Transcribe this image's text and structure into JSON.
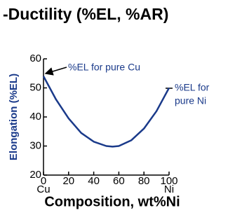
{
  "chart_data": {
    "type": "line",
    "title": "-Ductility (%EL, %AR)",
    "x_label": "Composition, wt%Ni",
    "y_label": "Elongation (%EL)",
    "x_end_labels": [
      "Cu",
      "Ni"
    ],
    "annotations": {
      "cu": "%EL for pure Cu",
      "ni": [
        "%EL for",
        "pure Ni"
      ]
    },
    "x": [
      0,
      10,
      20,
      30,
      40,
      50,
      55,
      60,
      70,
      80,
      90,
      100
    ],
    "values": [
      54,
      46,
      39.5,
      34.5,
      31.5,
      30,
      29.8,
      30,
      32,
      36,
      42,
      50
    ],
    "color": "#1a3a8a",
    "xlim": [
      0,
      100
    ],
    "xticks": [
      0,
      20,
      40,
      60,
      80,
      100
    ],
    "ylim": [
      20,
      60
    ],
    "yticks": [
      20,
      30,
      40,
      50,
      60
    ]
  }
}
